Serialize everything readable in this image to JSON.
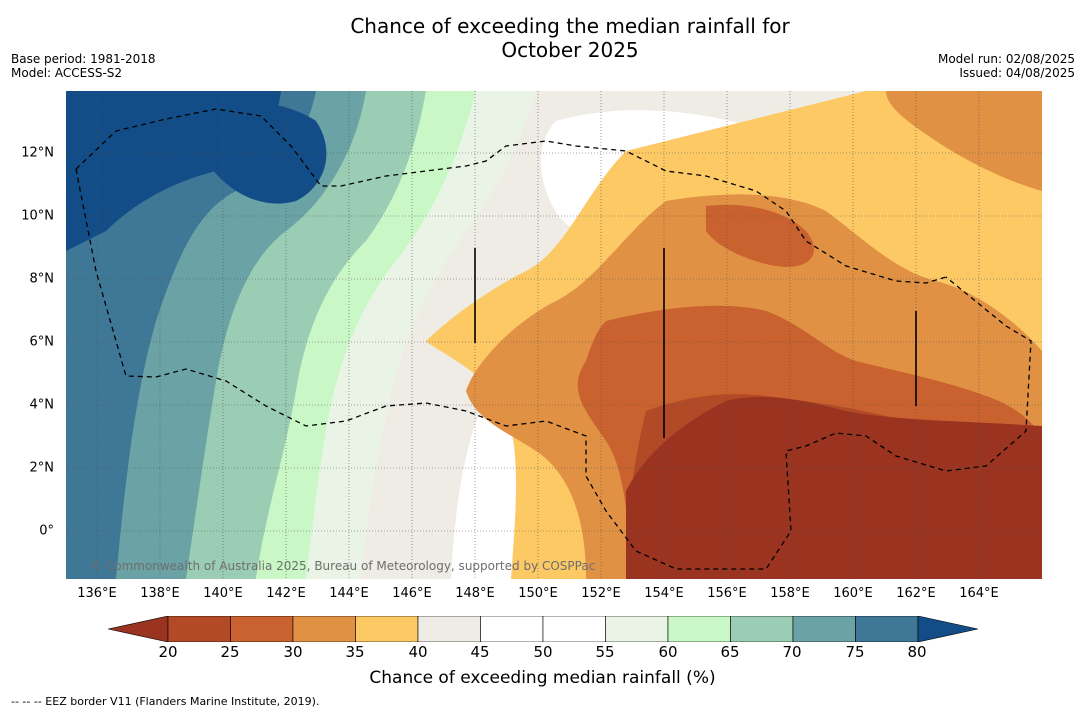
{
  "header": {
    "title_line1": "Chance of exceeding the median rainfall for",
    "title_line2": "October 2025",
    "base_period": "Base period: 1981-2018",
    "model": "Model: ACCESS-S2",
    "model_run": "Model run: 02/08/2025",
    "issued": "Issued: 04/08/2025"
  },
  "map": {
    "lon_range": [
      135,
      166
    ],
    "lat_range": [
      -1.5,
      14
    ],
    "lon_labels": [
      "136°E",
      "138°E",
      "140°E",
      "142°E",
      "144°E",
      "146°E",
      "148°E",
      "150°E",
      "152°E",
      "154°E",
      "156°E",
      "158°E",
      "160°E",
      "162°E",
      "164°E"
    ],
    "lat_labels": [
      "12°N",
      "10°N",
      "8°N",
      "6°N",
      "4°N",
      "2°N",
      "0°"
    ],
    "copyright": "© Commonwealth of Australia 2025, Bureau of Meteorology, supported by COSPPac"
  },
  "colorbar": {
    "colors": [
      "#9a3320",
      "#b24a28",
      "#c9622f",
      "#e19144",
      "#fdc965",
      "#efebe5",
      "#ffffff",
      "#ffffff",
      "#e9f4e6",
      "#c9f7c6",
      "#9acdb3",
      "#6aa2a5",
      "#3f7796",
      "#124d87"
    ],
    "ticks": [
      "20",
      "25",
      "30",
      "35",
      "40",
      "45",
      "50",
      "55",
      "60",
      "65",
      "70",
      "75",
      "80"
    ],
    "label": "Chance of exceeding median rainfall (%)"
  },
  "legend_note": "--  --  -- EEZ border V11 (Flanders Marine Institute, 2019)."
}
